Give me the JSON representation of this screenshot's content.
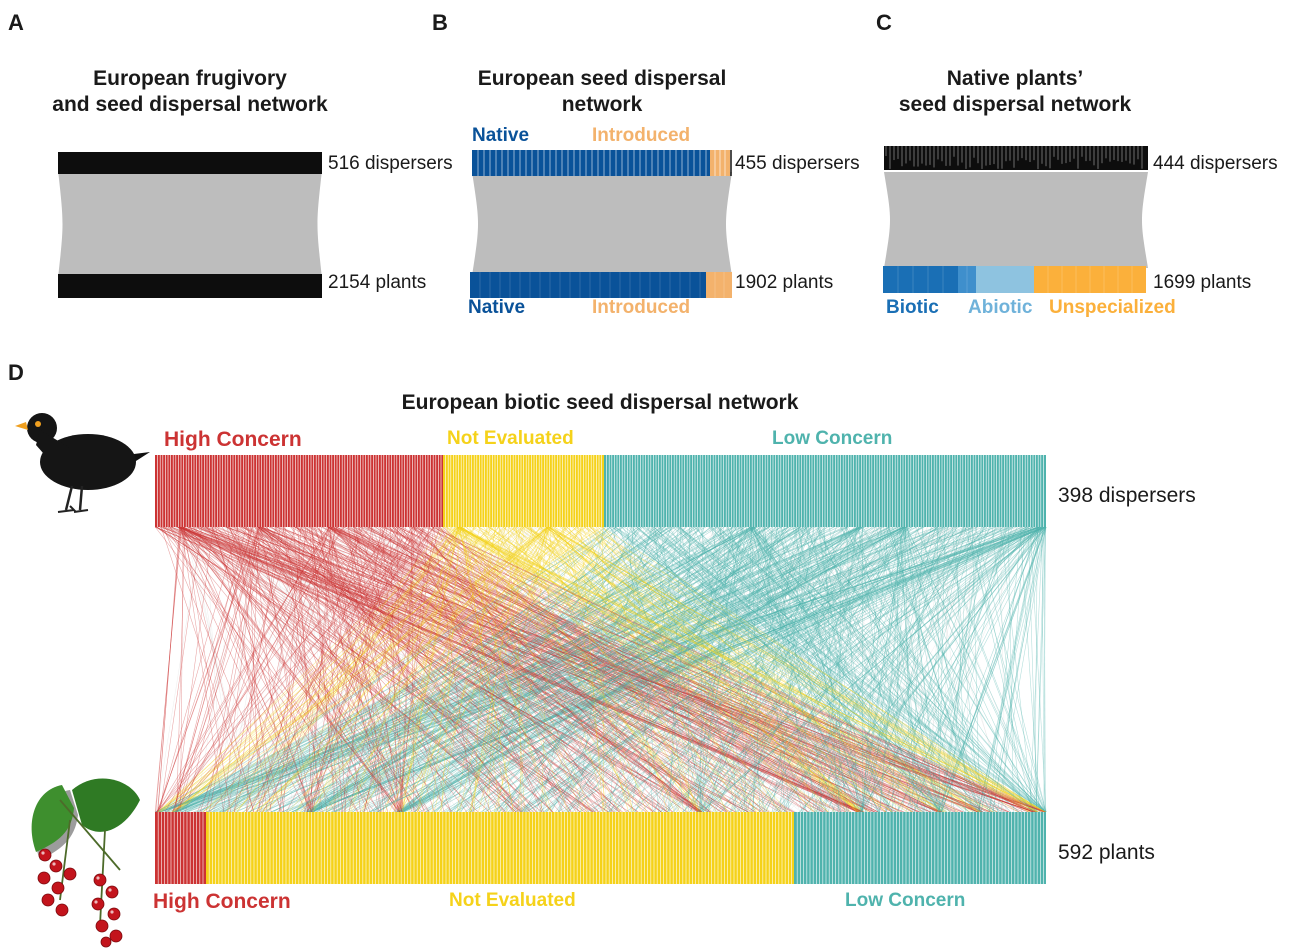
{
  "colors": {
    "native": "#0a5299",
    "introduced": "#f3b26c",
    "biotic": "#1a6fb5",
    "abiotic": "#8ec3e0",
    "unspecialized": "#fbb03b",
    "high_concern": "#cc3333",
    "not_evaluated": "#f5d21a",
    "low_concern": "#4fb3ad",
    "link_gray": "#bdbdbd",
    "bar_black": "#0d0d0d"
  },
  "panels": {
    "a": {
      "letter": "A",
      "title_line1": "European frugivory",
      "title_line2": "and seed dispersal network",
      "dispersers": "516 dispersers",
      "plants": "2154 plants"
    },
    "b": {
      "letter": "B",
      "title_line1": "European seed dispersal",
      "title_line2": "network",
      "top_native": "Native",
      "top_introduced": "Introduced",
      "dispersers": "455 dispersers",
      "plants": "1902 plants",
      "bottom_native": "Native",
      "bottom_introduced": "Introduced"
    },
    "c": {
      "letter": "C",
      "title_line1": "Native plants’",
      "title_line2": "seed dispersal network",
      "dispersers": "444 dispersers",
      "plants": "1699 plants",
      "biotic": "Biotic",
      "abiotic": "Abiotic",
      "unspecialized": "Unspecialized"
    },
    "d": {
      "letter": "D",
      "title": "European biotic seed dispersal network",
      "top_high": "High Concern",
      "top_not": "Not Evaluated",
      "top_low": "Low Concern",
      "dispersers": "398 dispersers",
      "plants": "592 plants",
      "bottom_high": "High Concern",
      "bottom_not": "Not Evaluated",
      "bottom_low": "Low Concern"
    }
  },
  "icons": {
    "bird": "blackbird-icon",
    "plant": "redcurrant-icon"
  }
}
